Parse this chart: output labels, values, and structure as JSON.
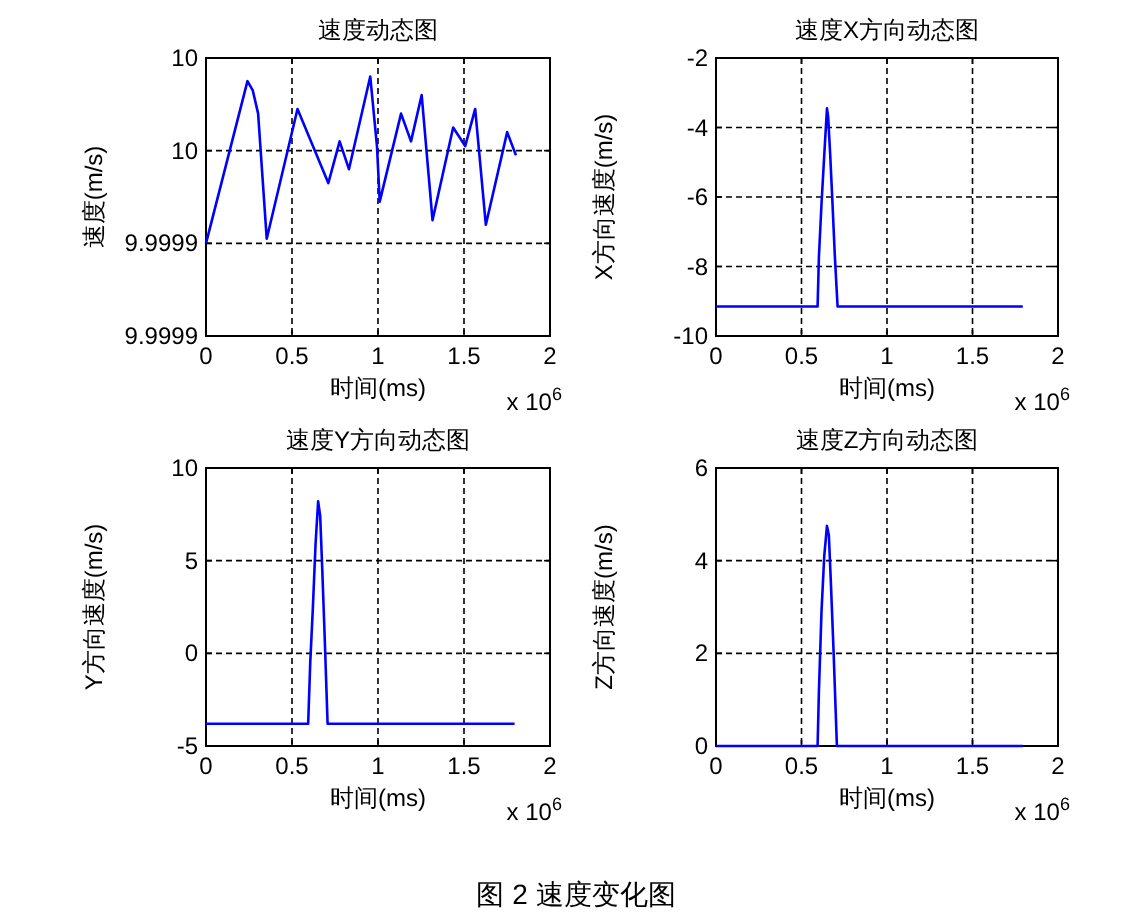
{
  "chart_data": [
    {
      "type": "line",
      "title": "速度动态图",
      "xlabel": "时间(ms)",
      "ylabel": "速度(m/s)",
      "annotations": [
        "x 10$^{6}$"
      ],
      "grid": true,
      "xlim": [
        0,
        2
      ],
      "xticks": [
        0,
        0.5,
        1,
        1.5,
        2
      ],
      "ylim": [
        9.99992,
        9.99998
      ],
      "yticks": [
        {
          "value": 9.99992,
          "label": "9.9999"
        },
        {
          "value": 9.99994,
          "label": "9.9999"
        },
        {
          "value": 9.99996,
          "label": "10"
        },
        {
          "value": 9.99998,
          "label": "10"
        }
      ],
      "x": [
        0,
        0.241,
        0.272,
        0.303,
        0.353,
        0.532,
        0.711,
        0.777,
        0.831,
        0.955,
        0.994,
        1.01,
        1.134,
        1.192,
        1.254,
        1.317,
        1.437,
        1.507,
        1.565,
        1.627,
        1.751,
        1.802
      ],
      "series": [
        {
          "color": "#0000ff",
          "values": [
            9.99994,
            9.999975,
            9.999973,
            9.999968,
            9.999941,
            9.999969,
            9.999953,
            9.999962,
            9.999956,
            9.999976,
            9.999961,
            9.999949,
            9.999968,
            9.999962,
            9.999972,
            9.999945,
            9.999965,
            9.999961,
            9.999969,
            9.999944,
            9.999964,
            9.999959
          ]
        }
      ]
    },
    {
      "type": "line",
      "title": "速度X方向动态图",
      "xlabel": "时间(ms)",
      "ylabel": "X方向速度(m/s)",
      "annotations": [
        "x 10$^{6}$"
      ],
      "grid": true,
      "xlim": [
        0,
        2
      ],
      "xticks": [
        0,
        0.5,
        1,
        1.5,
        2
      ],
      "ylim": [
        -10,
        -2
      ],
      "yticks": [
        -10,
        -8,
        -6,
        -4,
        -2
      ],
      "x": [
        0,
        0.594,
        0.602,
        0.617,
        0.633,
        0.649,
        0.656,
        0.668,
        0.68,
        0.695,
        0.711,
        1.794
      ],
      "series": [
        {
          "color": "#0000ff",
          "values": [
            -9.15,
            -9.15,
            -7.7,
            -6.2,
            -4.8,
            -3.45,
            -3.7,
            -4.8,
            -6.05,
            -7.7,
            -9.15,
            -9.15
          ]
        }
      ]
    },
    {
      "type": "line",
      "title": "速度Y方向动态图",
      "xlabel": "时间(ms)",
      "ylabel": "Y方向速度(m/s)",
      "annotations": [
        "x 10$^{6}$"
      ],
      "grid": true,
      "xlim": [
        0,
        2
      ],
      "xticks": [
        0,
        0.5,
        1,
        1.5,
        2
      ],
      "ylim": [
        -5,
        10
      ],
      "yticks": [
        -5,
        0,
        5,
        10
      ],
      "x": [
        0,
        0.594,
        0.606,
        0.621,
        0.637,
        0.652,
        0.664,
        0.676,
        0.691,
        0.707,
        1.794
      ],
      "series": [
        {
          "color": "#0000ff",
          "values": [
            -3.8,
            -3.8,
            -0.5,
            2.4,
            5.9,
            8.2,
            7.4,
            4.5,
            0.6,
            -3.8,
            -3.8
          ]
        }
      ]
    },
    {
      "type": "line",
      "title": "速度Z方向动态图",
      "xlabel": "时间(ms)",
      "ylabel": "Z方向速度(m/s)",
      "annotations": [
        "x 10$^{6}$"
      ],
      "grid": true,
      "xlim": [
        0,
        2
      ],
      "xticks": [
        0,
        0.5,
        1,
        1.5,
        2
      ],
      "ylim": [
        0,
        6
      ],
      "yticks": [
        0,
        2,
        4,
        6
      ],
      "x": [
        0,
        0.594,
        0.602,
        0.617,
        0.633,
        0.649,
        0.66,
        0.672,
        0.687,
        0.707,
        1.794
      ],
      "series": [
        {
          "color": "#0000ff",
          "values": [
            0,
            0,
            1.2,
            2.9,
            4.1,
            4.75,
            4.55,
            3.5,
            2.1,
            0,
            0
          ]
        }
      ]
    },
    {
      "type": "other",
      "annotations": [
        "图 2  速度变化图"
      ]
    }
  ]
}
